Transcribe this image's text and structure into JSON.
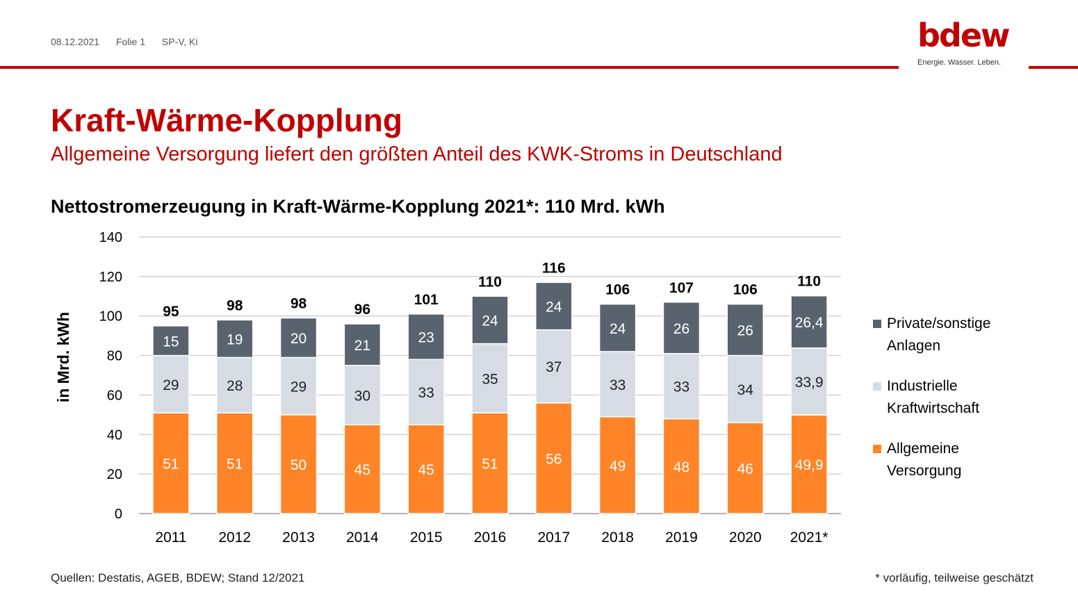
{
  "header": {
    "date": "08.12.2021",
    "slide": "Folie 1",
    "author": "SP-V, Ki"
  },
  "logo": {
    "word": "bdew",
    "tagline": "Energie. Wasser. Leben."
  },
  "title": "Kraft-Wärme-Kopplung",
  "subtitle": "Allgemeine Versorgung liefert den größten Anteil des KWK-Stroms in Deutschland",
  "colors": {
    "brand_red": "#c00000",
    "allgemeine": "#ff8427",
    "industrielle": "#d6dce4",
    "private": "#59636e"
  },
  "chart_data": {
    "type": "bar",
    "stacked": true,
    "title": "Nettostromerzeugung in Kraft-Wärme-Kopplung 2021*: 110 Mrd. kWh",
    "ylabel": "in Mrd. kWh",
    "xlabel": "",
    "ylim": [
      0,
      140
    ],
    "yticks": [
      "0",
      "20",
      "40",
      "60",
      "80",
      "100",
      "120",
      "140"
    ],
    "grid": true,
    "legend_position": "right",
    "categories": [
      "2011",
      "2012",
      "2013",
      "2014",
      "2015",
      "2016",
      "2017",
      "2018",
      "2019",
      "2020",
      "2021*"
    ],
    "series": [
      {
        "name": "Allgemeine Versorgung",
        "color": "#ff8427",
        "values": [
          51,
          51,
          50,
          45,
          45,
          51,
          56,
          49,
          48,
          46,
          49.9
        ],
        "labels": [
          "51",
          "51",
          "50",
          "45",
          "45",
          "51",
          "56",
          "49",
          "48",
          "46",
          "49,9"
        ]
      },
      {
        "name": "Industrielle Kraftwirtschaft",
        "color": "#d6dce4",
        "values": [
          29,
          28,
          29,
          30,
          33,
          35,
          37,
          33,
          33,
          34,
          33.9
        ],
        "labels": [
          "29",
          "28",
          "29",
          "30",
          "33",
          "35",
          "37",
          "33",
          "33",
          "34",
          "33,9"
        ]
      },
      {
        "name": "Private/sonstige Anlagen",
        "color": "#59636e",
        "values": [
          15,
          19,
          20,
          21,
          23,
          24,
          24,
          24,
          26,
          26,
          26.4
        ],
        "labels": [
          "15",
          "19",
          "20",
          "21",
          "23",
          "24",
          "24",
          "24",
          "26",
          "26",
          "26,4"
        ]
      }
    ],
    "totals": [
      "95",
      "98",
      "98",
      "96",
      "101",
      "110",
      "116",
      "106",
      "107",
      "106",
      "110"
    ]
  },
  "legend": {
    "items": [
      {
        "line1": "Private/sonstige",
        "line2": "Anlagen",
        "color": "#59636e"
      },
      {
        "line1": "Industrielle",
        "line2": "Kraftwirtschaft",
        "color": "#d6dce4"
      },
      {
        "line1": "Allgemeine",
        "line2": "Versorgung",
        "color": "#ff8427"
      }
    ]
  },
  "footer": {
    "source": "Quellen: Destatis, AGEB, BDEW; Stand 12/2021",
    "footnote": "* vorläufig, teilweise geschätzt"
  }
}
